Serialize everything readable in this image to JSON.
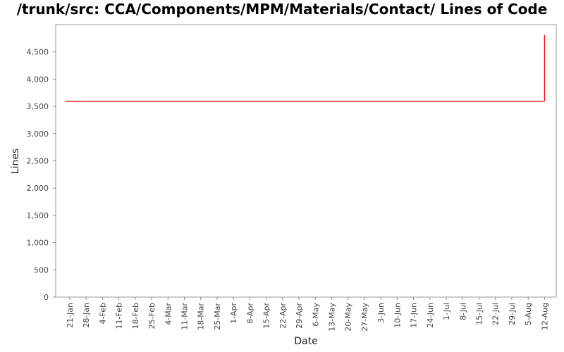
{
  "chart_data": {
    "type": "line",
    "title": "/trunk/src: CCA/Components/MPM/Materials/Contact/ Lines of Code",
    "xlabel": "Date",
    "ylabel": "Lines",
    "ylim": [
      0,
      5000
    ],
    "yticks": [
      0,
      500,
      1000,
      1500,
      2000,
      2500,
      3000,
      3500,
      4000,
      4500
    ],
    "ytick_labels": [
      "0",
      "500",
      "1,000",
      "1,500",
      "2,000",
      "2,500",
      "3,000",
      "3,500",
      "4,000",
      "4,500"
    ],
    "xlim": [
      "2007-01-15",
      "2007-08-17"
    ],
    "xticks": [
      "2007-01-21",
      "2007-01-28",
      "2007-02-04",
      "2007-02-11",
      "2007-02-18",
      "2007-02-25",
      "2007-03-04",
      "2007-03-11",
      "2007-03-18",
      "2007-03-25",
      "2007-04-01",
      "2007-04-08",
      "2007-04-15",
      "2007-04-22",
      "2007-04-29",
      "2007-05-06",
      "2007-05-13",
      "2007-05-20",
      "2007-05-27",
      "2007-06-03",
      "2007-06-10",
      "2007-06-17",
      "2007-06-24",
      "2007-07-01",
      "2007-07-08",
      "2007-07-15",
      "2007-07-22",
      "2007-07-29",
      "2007-08-05",
      "2007-08-12"
    ],
    "xtick_labels": [
      "21-Jan",
      "28-Jan",
      "4-Feb",
      "11-Feb",
      "18-Feb",
      "25-Feb",
      "4-Mar",
      "11-Mar",
      "18-Mar",
      "25-Mar",
      "1-Apr",
      "8-Apr",
      "15-Apr",
      "22-Apr",
      "29-Apr",
      "6-May",
      "13-May",
      "20-May",
      "27-May",
      "3-Jun",
      "10-Jun",
      "17-Jun",
      "24-Jun",
      "1-Jul",
      "8-Jul",
      "15-Jul",
      "22-Jul",
      "29-Jul",
      "5-Aug",
      "12-Aug"
    ],
    "series": [
      {
        "color": "#ff0000",
        "x": [
          "2007-01-19",
          "2007-08-11",
          "2007-08-12",
          "2007-08-12"
        ],
        "y": [
          3590,
          3590,
          3600,
          4810
        ]
      }
    ],
    "grid": false,
    "legend": "none"
  }
}
